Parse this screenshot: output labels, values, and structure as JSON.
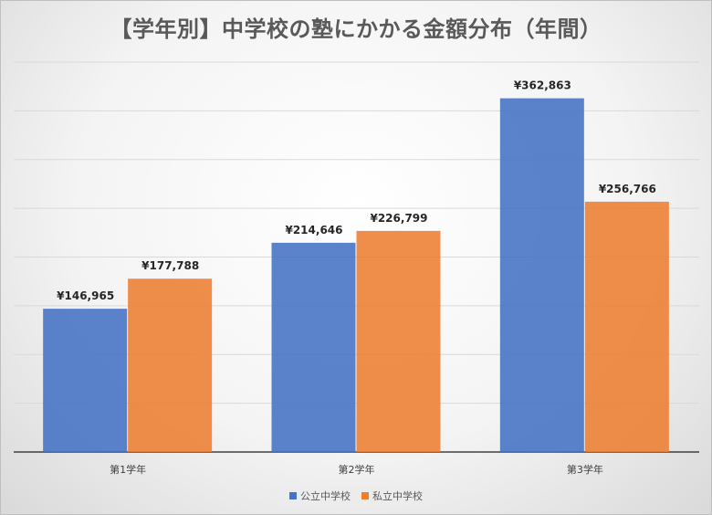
{
  "chart_data": {
    "type": "bar",
    "title": "【学年別】中学校の塾にかかる金額分布（年間）",
    "categories": [
      "第1学年",
      "第2学年",
      "第3学年"
    ],
    "series": [
      {
        "name": "公立中学校",
        "color": "#4472C4",
        "values": [
          146965,
          214646,
          362863
        ],
        "labels": [
          "¥146,965",
          "¥214,646",
          "¥362,863"
        ]
      },
      {
        "name": "私立中学校",
        "color": "#ED7D31",
        "values": [
          177788,
          226799,
          256766
        ],
        "labels": [
          "¥177,788",
          "¥226,799",
          "¥256,766"
        ]
      }
    ],
    "ylim": [
      0,
      400000
    ],
    "gridlines": true,
    "legend": "bottom"
  }
}
